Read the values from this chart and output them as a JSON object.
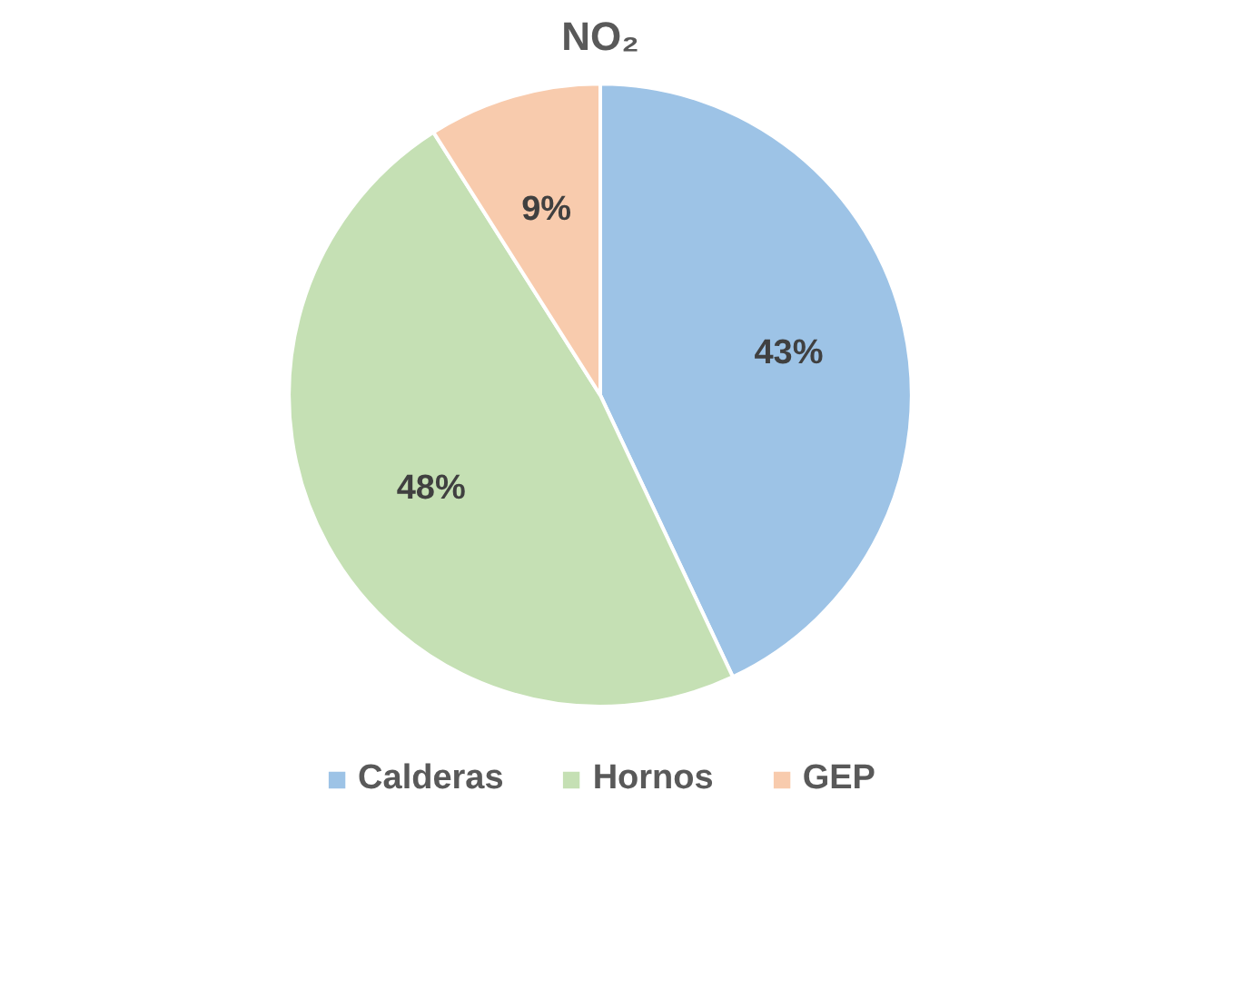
{
  "chart_data": {
    "type": "pie",
    "title": "NO₂",
    "categories": [
      "Calderas",
      "Hornos",
      "GEP"
    ],
    "values": [
      43,
      48,
      9
    ],
    "colors": [
      "#9dc3e6",
      "#c5e0b4",
      "#f8cbad"
    ],
    "value_labels": [
      "43%",
      "48%",
      "9%"
    ],
    "legend": "bottom"
  }
}
